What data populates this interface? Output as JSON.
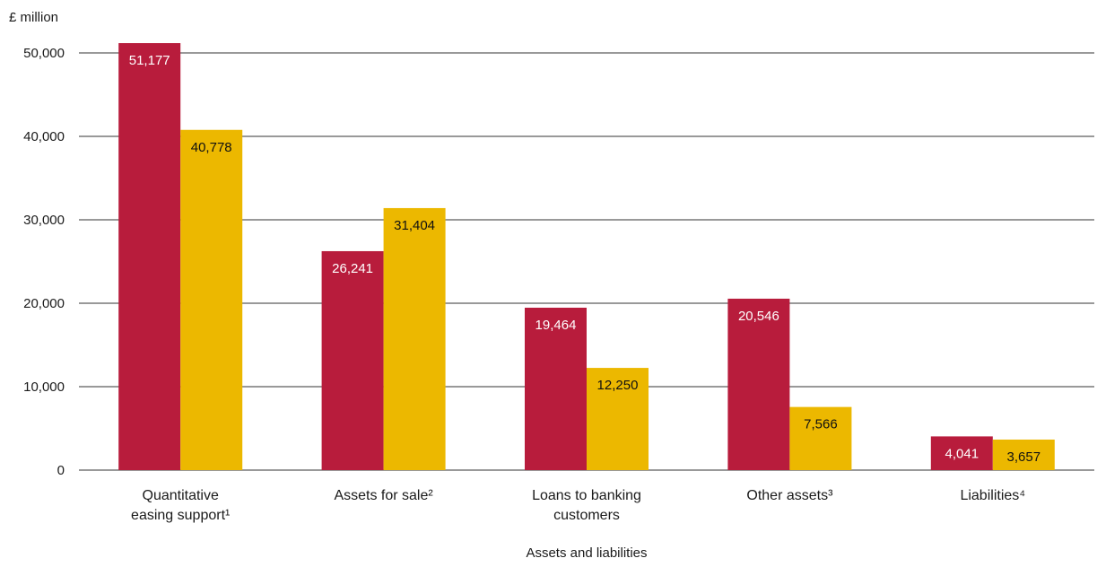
{
  "chart_data": {
    "type": "bar",
    "ylabel": "£ million",
    "xlabel": "Assets and liabilities",
    "ylim": [
      0,
      50000
    ],
    "yticks": [
      {
        "value": 0,
        "label": "0"
      },
      {
        "value": 10000,
        "label": "10,000"
      },
      {
        "value": 20000,
        "label": "20,000"
      },
      {
        "value": 30000,
        "label": "30,000"
      },
      {
        "value": 40000,
        "label": "40,000"
      },
      {
        "value": 50000,
        "label": "50,000"
      }
    ],
    "categories": [
      [
        "Quantitative",
        "easing support¹"
      ],
      [
        "Assets for sale²"
      ],
      [
        "Loans to banking",
        "customers"
      ],
      [
        "Other assets³"
      ],
      [
        "Liabilities⁴"
      ]
    ],
    "series": [
      {
        "color": "#b81c3c",
        "label_color": "#ffffff",
        "values": [
          51177,
          26241,
          19464,
          20546,
          4041
        ],
        "labels": [
          "51,177",
          "26,241",
          "19,464",
          "20,546",
          "4,041"
        ]
      },
      {
        "color": "#ecb800",
        "label_color": "#111111",
        "values": [
          40778,
          31404,
          12250,
          7566,
          3657
        ],
        "labels": [
          "40,778",
          "31,404",
          "12,250",
          "7,566",
          "3,657"
        ]
      }
    ],
    "grid": true,
    "legend": "none"
  }
}
